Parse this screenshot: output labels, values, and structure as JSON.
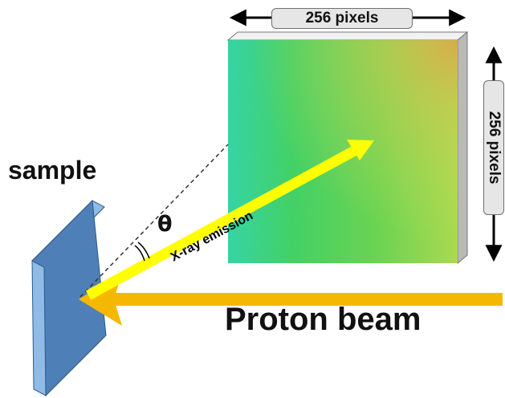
{
  "labels": {
    "top_dimension": "256 pixels",
    "side_dimension": "256 pixels",
    "sample": "sample",
    "angle": "θ",
    "emission": "X-ray emission",
    "beam": "Proton beam"
  },
  "colors": {
    "beam": "#f5b800",
    "emission_arrow": "#ffff00",
    "sample_face": "#4f7fb7",
    "sample_edge": "#8fbbe6",
    "detector_green": "#3fcf5a",
    "detector_cyan": "#2fd2a6",
    "detector_yellow": "#d6e04a",
    "detector_orange": "#f0a23a"
  }
}
